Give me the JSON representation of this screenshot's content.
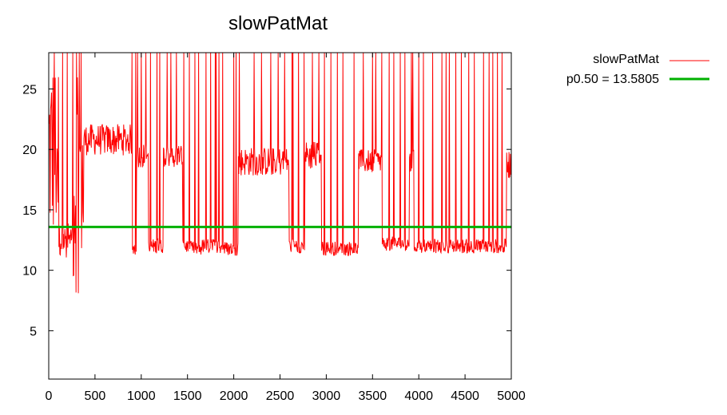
{
  "chart_data": {
    "type": "line",
    "title": "slowPatMat",
    "xlabel": "",
    "ylabel": "",
    "xlim": [
      0,
      5000
    ],
    "ylim": [
      1,
      28
    ],
    "xticks": [
      0,
      500,
      1000,
      1500,
      2000,
      2500,
      3000,
      3500,
      4000,
      4500,
      5000
    ],
    "yticks": [
      5,
      10,
      15,
      20,
      25
    ],
    "grid": false,
    "legend_position": "top-right-outside",
    "series": [
      {
        "name": "slowPatMat",
        "color": "#ff0000",
        "style": "line",
        "regimes": [
          {
            "x": [
              0,
              110
            ],
            "level": 20.0,
            "noise": 8.0
          },
          {
            "x": [
              110,
              260
            ],
            "level": 12.5,
            "noise": 1.5
          },
          {
            "x": [
              260,
              380
            ],
            "level": 17.0,
            "noise": 9.0
          },
          {
            "x": [
              380,
              900
            ],
            "level": 20.8,
            "noise": 1.3
          },
          {
            "x": [
              900,
              950
            ],
            "level": 11.8,
            "noise": 0.6
          },
          {
            "x": [
              950,
              1080
            ],
            "level": 19.5,
            "noise": 1.0
          },
          {
            "x": [
              1080,
              1240
            ],
            "level": 12.0,
            "noise": 0.6
          },
          {
            "x": [
              1240,
              1450
            ],
            "level": 19.5,
            "noise": 1.0
          },
          {
            "x": [
              1450,
              1500
            ],
            "level": 12.0,
            "noise": 0.6
          },
          {
            "x": [
              1500,
              1650
            ],
            "level": 11.8,
            "noise": 0.6
          },
          {
            "x": [
              1650,
              1900
            ],
            "level": 12.0,
            "noise": 0.6
          },
          {
            "x": [
              1900,
              2050
            ],
            "level": 11.8,
            "noise": 0.6
          },
          {
            "x": [
              2050,
              2600
            ],
            "level": 19.0,
            "noise": 1.2
          },
          {
            "x": [
              2600,
              2770
            ],
            "level": 12.0,
            "noise": 0.6
          },
          {
            "x": [
              2770,
              2950
            ],
            "level": 19.5,
            "noise": 1.2
          },
          {
            "x": [
              2950,
              3350
            ],
            "level": 11.8,
            "noise": 0.6
          },
          {
            "x": [
              3350,
              3600
            ],
            "level": 19.0,
            "noise": 1.0
          },
          {
            "x": [
              3600,
              3900
            ],
            "level": 12.2,
            "noise": 0.6
          },
          {
            "x": [
              3900,
              3950
            ],
            "level": 19.0,
            "noise": 1.0
          },
          {
            "x": [
              3950,
              4950
            ],
            "level": 12.0,
            "noise": 0.6
          },
          {
            "x": [
              4950,
              5000
            ],
            "level": 18.8,
            "noise": 1.2
          }
        ],
        "spikes": [
          60,
          150,
          200,
          260,
          300,
          330,
          350,
          900,
          940,
          960,
          1000,
          1050,
          1100,
          1170,
          1200,
          1280,
          1320,
          1380,
          1460,
          1520,
          1580,
          1620,
          1700,
          1750,
          1800,
          1840,
          1880,
          2000,
          2060,
          2220,
          2300,
          2400,
          2480,
          2550,
          2640,
          2700,
          2760,
          2850,
          2920,
          2980,
          3050,
          3120,
          3180,
          3300,
          3400,
          3500,
          3600,
          3680,
          3730,
          3800,
          3850,
          3920,
          4000,
          4050,
          4150,
          4250,
          4330,
          4400,
          4460,
          4540,
          4600,
          4700,
          4760,
          4800,
          4850,
          4900
        ]
      },
      {
        "name": "p0.50 = 13.5805",
        "color": "#00b000",
        "style": "hline",
        "y": 13.5805
      }
    ]
  }
}
